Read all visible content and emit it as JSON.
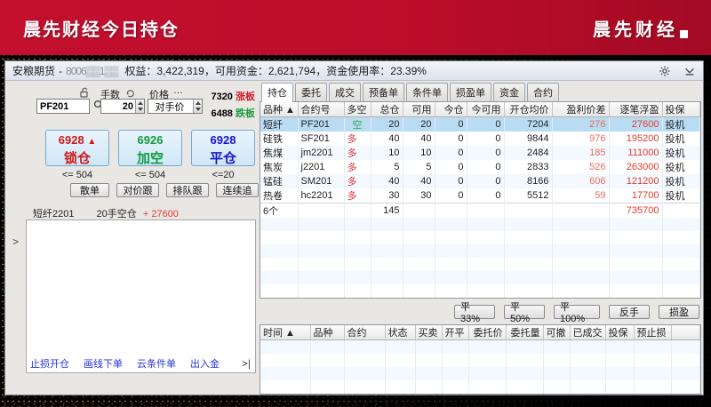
{
  "banner": {
    "title": "晨先财经今日持仓",
    "brand": "晨先财经"
  },
  "titlebar": {
    "broker": "安粮期货",
    "dash": "-",
    "account": "8006▒▒1▒▒",
    "equity_label": "权益：",
    "equity": "3,422,319",
    "avail_label": "，可用资金：",
    "avail": "2,621,794",
    "usage_label": "，资金使用率：",
    "usage": "23.39%"
  },
  "order": {
    "symbol": "PF201",
    "lots_label": "手数",
    "lots": "20",
    "price_label": "价格",
    "price_dots": "…",
    "price_mode": "对手价",
    "limit_up": "7320",
    "limit_up_tag": "涨板",
    "limit_down": "6488",
    "limit_down_tag": "跌板",
    "btn_lock": {
      "price": "6928",
      "arrow": "▲",
      "label": "锁仓",
      "cap": "<= 504"
    },
    "btn_short": {
      "price": "6926",
      "label": "加空",
      "cap": "<= 504"
    },
    "btn_close": {
      "price": "6928",
      "label": "平仓",
      "cap": "<=20"
    },
    "quick": [
      "散单",
      "对价跟",
      "排队跟",
      "连续追"
    ],
    "pos_name": "短纤2201",
    "pos_desc": "20手空仓",
    "pos_pnl": "+ 27600",
    "links": [
      "止损开仓",
      "画线下单",
      "云条件单",
      "出入金"
    ],
    "expander": ">",
    "collapse": ">|"
  },
  "tabs": [
    "持仓",
    "委托",
    "成交",
    "预备单",
    "条件单",
    "损盈单",
    "资金",
    "合约"
  ],
  "positions": {
    "headers": [
      "品种 ▲",
      "合约号",
      "多空",
      "总仓",
      "可用",
      "今仓",
      "今可用",
      "开仓均价",
      "盈利价差",
      "逐笔浮盈",
      "投保"
    ],
    "rows": [
      {
        "name": "短纤",
        "code": "PF201",
        "side": "空",
        "total": "20",
        "avail": "20",
        "today": "0",
        "tavail": "0",
        "avg": "7204",
        "diff": "276",
        "fl": "27600",
        "hedge": "投机"
      },
      {
        "name": "硅铁",
        "code": "SF201",
        "side": "多",
        "total": "40",
        "avail": "40",
        "today": "0",
        "tavail": "0",
        "avg": "9844",
        "diff": "976",
        "fl": "195200",
        "hedge": "投机"
      },
      {
        "name": "焦煤",
        "code": "jm2201",
        "side": "多",
        "total": "10",
        "avail": "10",
        "today": "0",
        "tavail": "0",
        "avg": "2484",
        "diff": "185",
        "fl": "111000",
        "hedge": "投机"
      },
      {
        "name": "焦炭",
        "code": "j2201",
        "side": "多",
        "total": "5",
        "avail": "5",
        "today": "0",
        "tavail": "0",
        "avg": "2833",
        "diff": "526",
        "fl": "263000",
        "hedge": "投机"
      },
      {
        "name": "锰硅",
        "code": "SM201",
        "side": "多",
        "total": "40",
        "avail": "40",
        "today": "0",
        "tavail": "0",
        "avg": "8166",
        "diff": "606",
        "fl": "121200",
        "hedge": "投机"
      },
      {
        "name": "热卷",
        "code": "hc2201",
        "side": "多",
        "total": "30",
        "avail": "30",
        "today": "0",
        "tavail": "0",
        "avg": "5512",
        "diff": "59",
        "fl": "17700",
        "hedge": "投机"
      }
    ],
    "sum_count": "6个",
    "sum_total": "145",
    "sum_float": "735700"
  },
  "actions": [
    "平33%",
    "平50%",
    "平100%",
    "反手",
    "损盈"
  ],
  "orders": {
    "headers": [
      "时间 ▲",
      "品种",
      "合约",
      "状态",
      "买卖",
      "开平",
      "委托价",
      "委托量",
      "可撤",
      "已成交",
      "投保",
      "预止损"
    ]
  }
}
